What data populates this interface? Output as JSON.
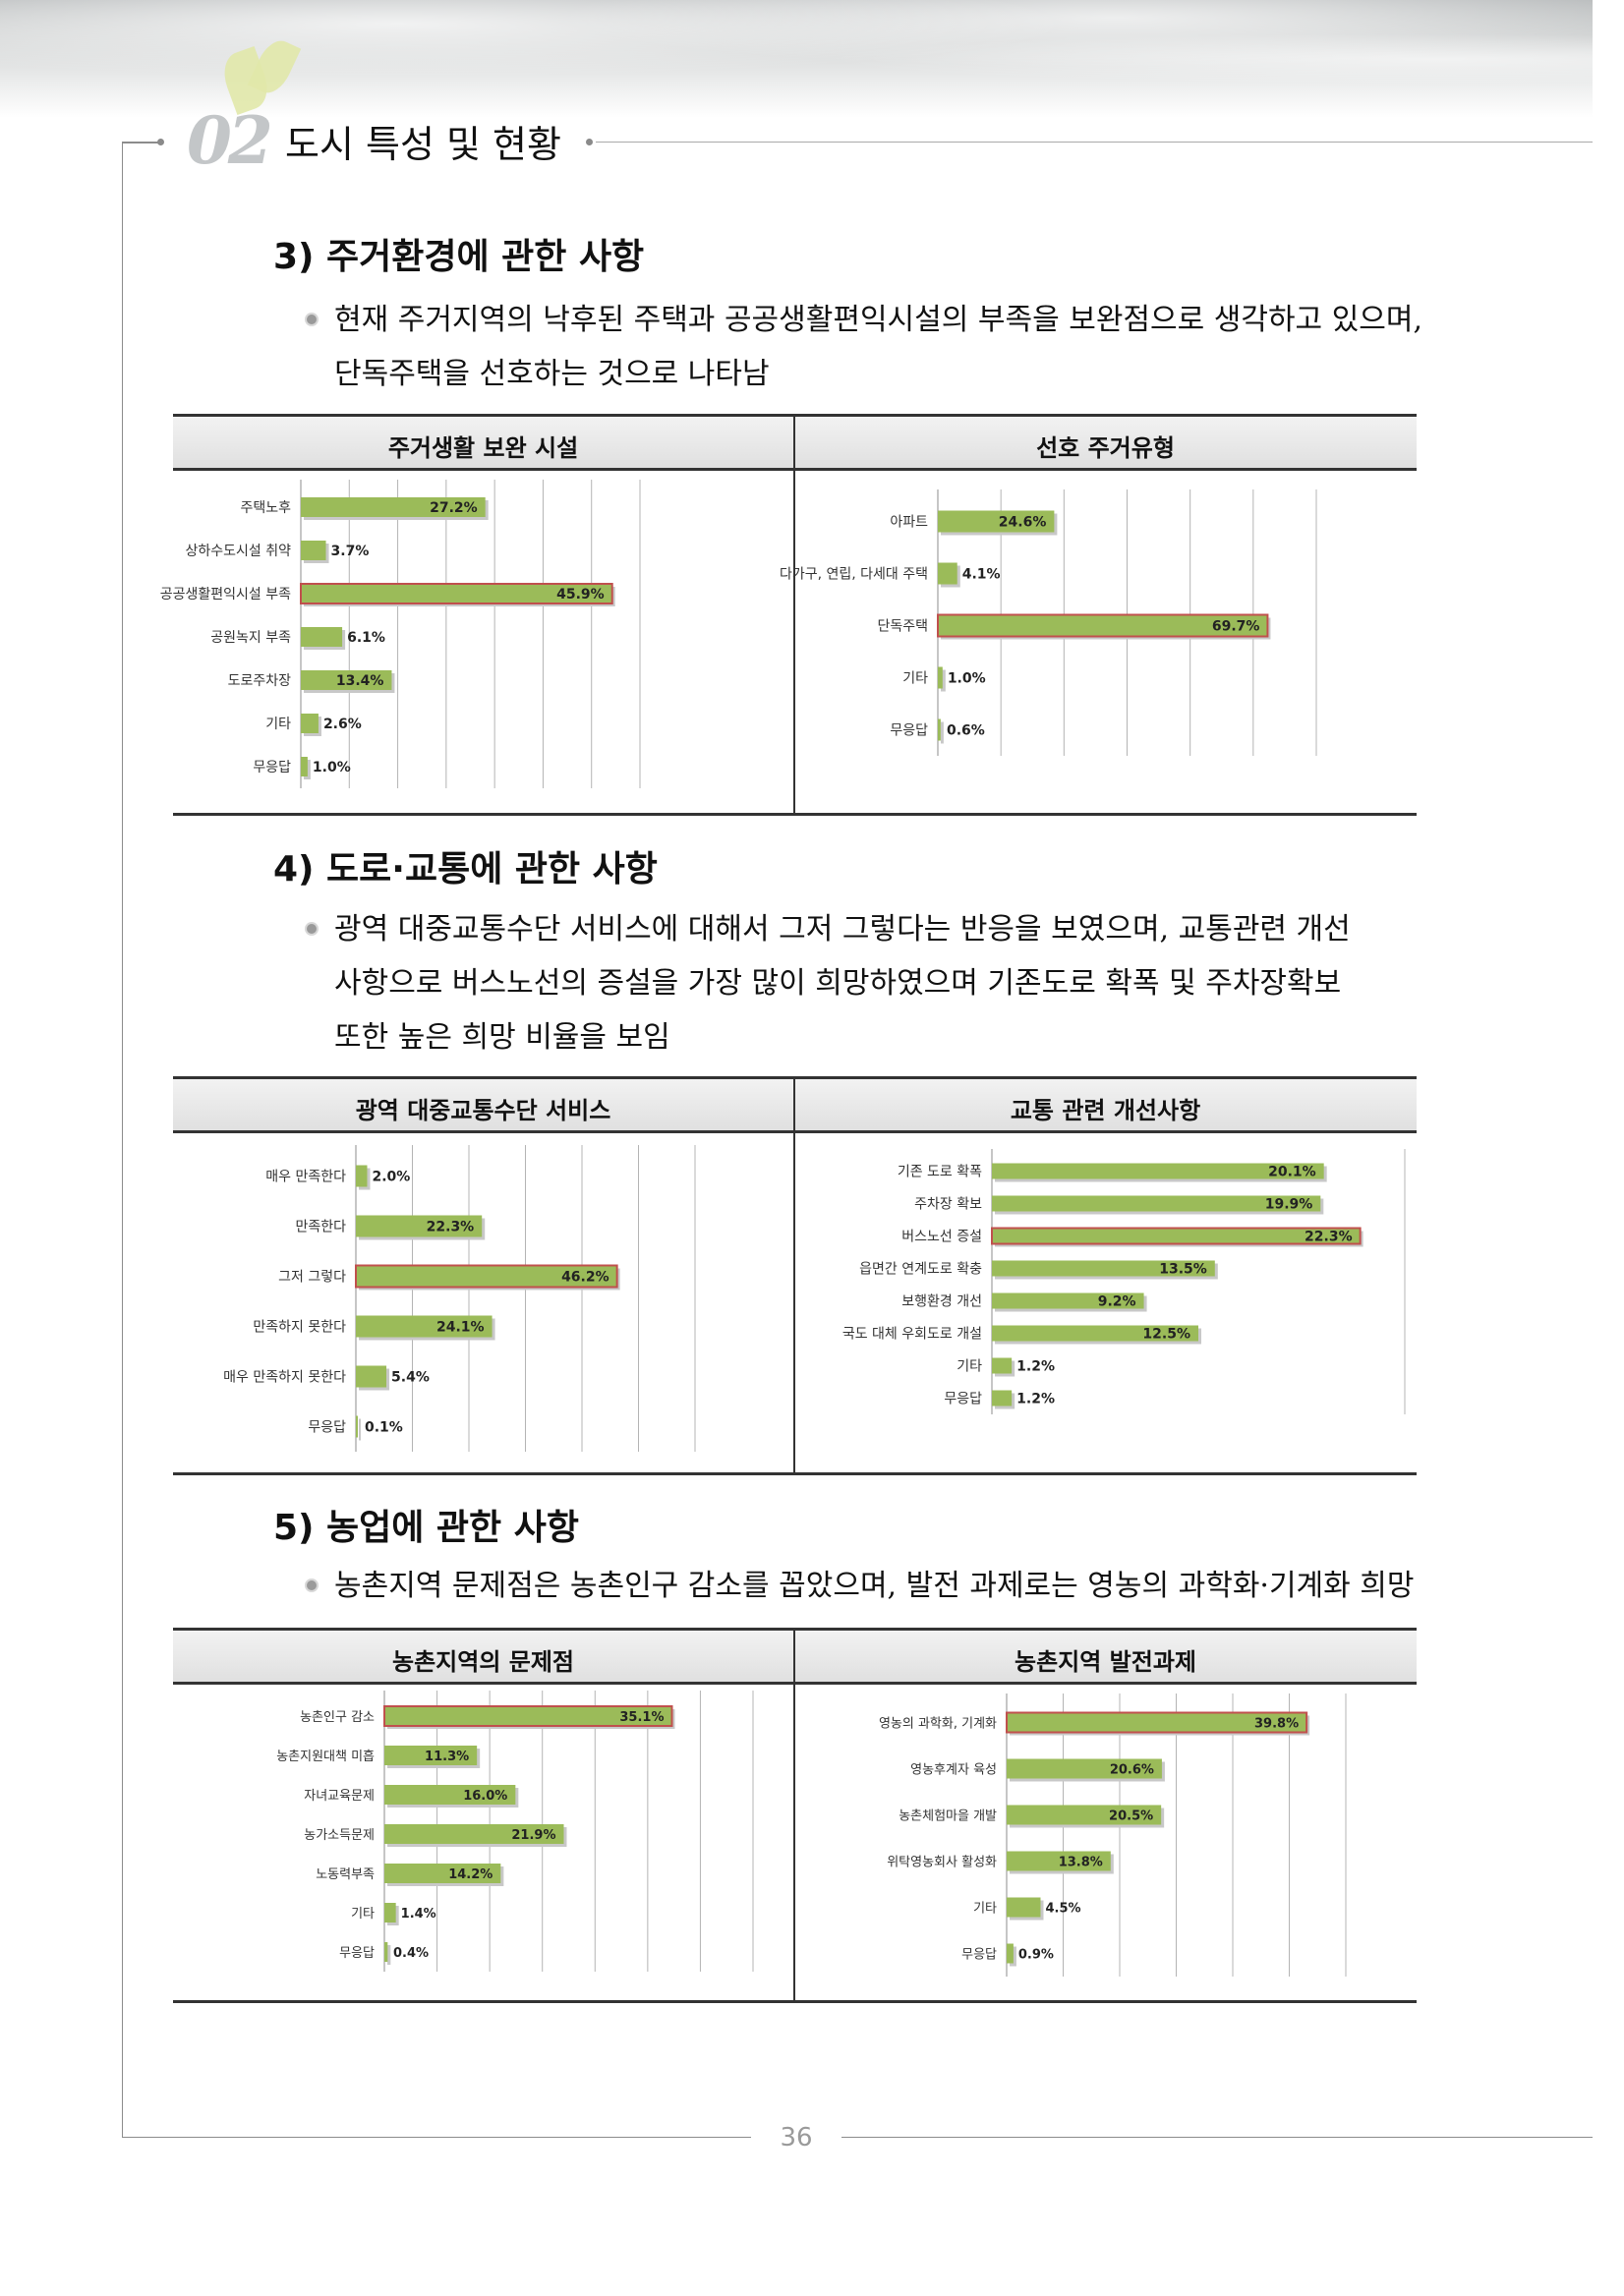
{
  "header": {
    "chapter_number": "02",
    "chapter_title": "도시 특성 및 현황"
  },
  "sections": [
    {
      "title": "3) 주거환경에 관한 사항",
      "text_lines": [
        "현재 주거지역의 낙후된 주택과 공공생활편익시설의 부족을 보완점으로 생각하고 있으며,",
        "단독주택을 선호하는 것으로 나타남"
      ]
    },
    {
      "title": "4) 도로·교통에 관한 사항",
      "text_lines": [
        "광역 대중교통수단 서비스에 대해서 그저 그렇다는 반응을 보였으며, 교통관련 개선",
        "사항으로 버스노선의 증설을 가장 많이 희망하였으며 기존도로 확폭 및 주차장확보",
        "또한 높은 희망 비율을 보임"
      ]
    },
    {
      "title": "5) 농업에 관한 사항",
      "text_lines": [
        "농촌지역 문제점은 농촌인구 감소를 꼽았으며, 발전 과제로는 영농의 과학화·기계화 희망"
      ]
    }
  ],
  "colors": {
    "bar_fill": "#9bbb59",
    "bar_highlight_border": "#c0504d",
    "panel_rule": "#333333"
  },
  "chart_data": [
    {
      "type": "bar",
      "orientation": "horizontal",
      "title": "주거생활 보완 시설",
      "categories": [
        "주택노후",
        "상하수도시설 취약",
        "공공생활편익시설 부족",
        "공원녹지 부족",
        "도로주차장",
        "기타",
        "무응답"
      ],
      "values": [
        27.2,
        3.7,
        45.9,
        6.1,
        13.4,
        2.6,
        1.0
      ],
      "labels": [
        "27.2%",
        "3.7%",
        "45.9%",
        "6.1%",
        "13.4%",
        "2.6%",
        "1.0%"
      ],
      "highlight_index": 2
    },
    {
      "type": "bar",
      "orientation": "horizontal",
      "title": "선호 주거유형",
      "categories": [
        "아파트",
        "다가구, 연립, 다세대 주택",
        "단독주택",
        "기타",
        "무응답"
      ],
      "values": [
        24.6,
        4.1,
        69.7,
        1.0,
        0.6
      ],
      "labels": [
        "24.6%",
        "4.1%",
        "69.7%",
        "1.0%",
        "0.6%"
      ],
      "highlight_index": 2
    },
    {
      "type": "bar",
      "orientation": "horizontal",
      "title": "광역 대중교통수단 서비스",
      "categories": [
        "매우 만족한다",
        "만족한다",
        "그저 그렇다",
        "만족하지 못한다",
        "매우 만족하지 못한다",
        "무응답"
      ],
      "values": [
        2.0,
        22.3,
        46.2,
        24.1,
        5.4,
        0.1
      ],
      "labels": [
        "2.0%",
        "22.3%",
        "46.2%",
        "24.1%",
        "5.4%",
        "0.1%"
      ],
      "highlight_index": 2
    },
    {
      "type": "bar",
      "orientation": "horizontal",
      "title": "교통 관련 개선사항",
      "categories": [
        "기존 도로 확폭",
        "주차장 확보",
        "버스노선 증설",
        "읍면간 연계도로 확충",
        "보행환경 개선",
        "국도 대체 우회도로 개설",
        "기타",
        "무응답"
      ],
      "values": [
        20.1,
        19.9,
        22.3,
        13.5,
        9.2,
        12.5,
        1.2,
        1.2
      ],
      "labels": [
        "20.1%",
        "19.9%",
        "22.3%",
        "13.5%",
        "9.2%",
        "12.5%",
        "1.2%",
        "1.2%"
      ],
      "highlight_index": 2
    },
    {
      "type": "bar",
      "orientation": "horizontal",
      "title": "농촌지역의 문제점",
      "categories": [
        "농촌인구 감소",
        "농촌지원대책 미흡",
        "자녀교육문제",
        "농가소득문제",
        "노동력부족",
        "기타",
        "무응답"
      ],
      "values": [
        35.1,
        11.3,
        16.0,
        21.9,
        14.2,
        1.4,
        0.4
      ],
      "labels": [
        "35.1%",
        "11.3%",
        "16.0%",
        "21.9%",
        "14.2%",
        "1.4%",
        "0.4%"
      ],
      "highlight_index": 0
    },
    {
      "type": "bar",
      "orientation": "horizontal",
      "title": "농촌지역 발전과제",
      "categories": [
        "영농의 과학화, 기계화",
        "영농후계자 육성",
        "농촌체험마을 개발",
        "위탁영농회사 활성화",
        "기타",
        "무응답"
      ],
      "values": [
        39.8,
        20.6,
        20.5,
        13.8,
        4.5,
        0.9
      ],
      "labels": [
        "39.8%",
        "20.6%",
        "20.5%",
        "13.8%",
        "4.5%",
        "0.9%"
      ],
      "highlight_index": 0
    }
  ],
  "footer": {
    "page_number": "36"
  }
}
